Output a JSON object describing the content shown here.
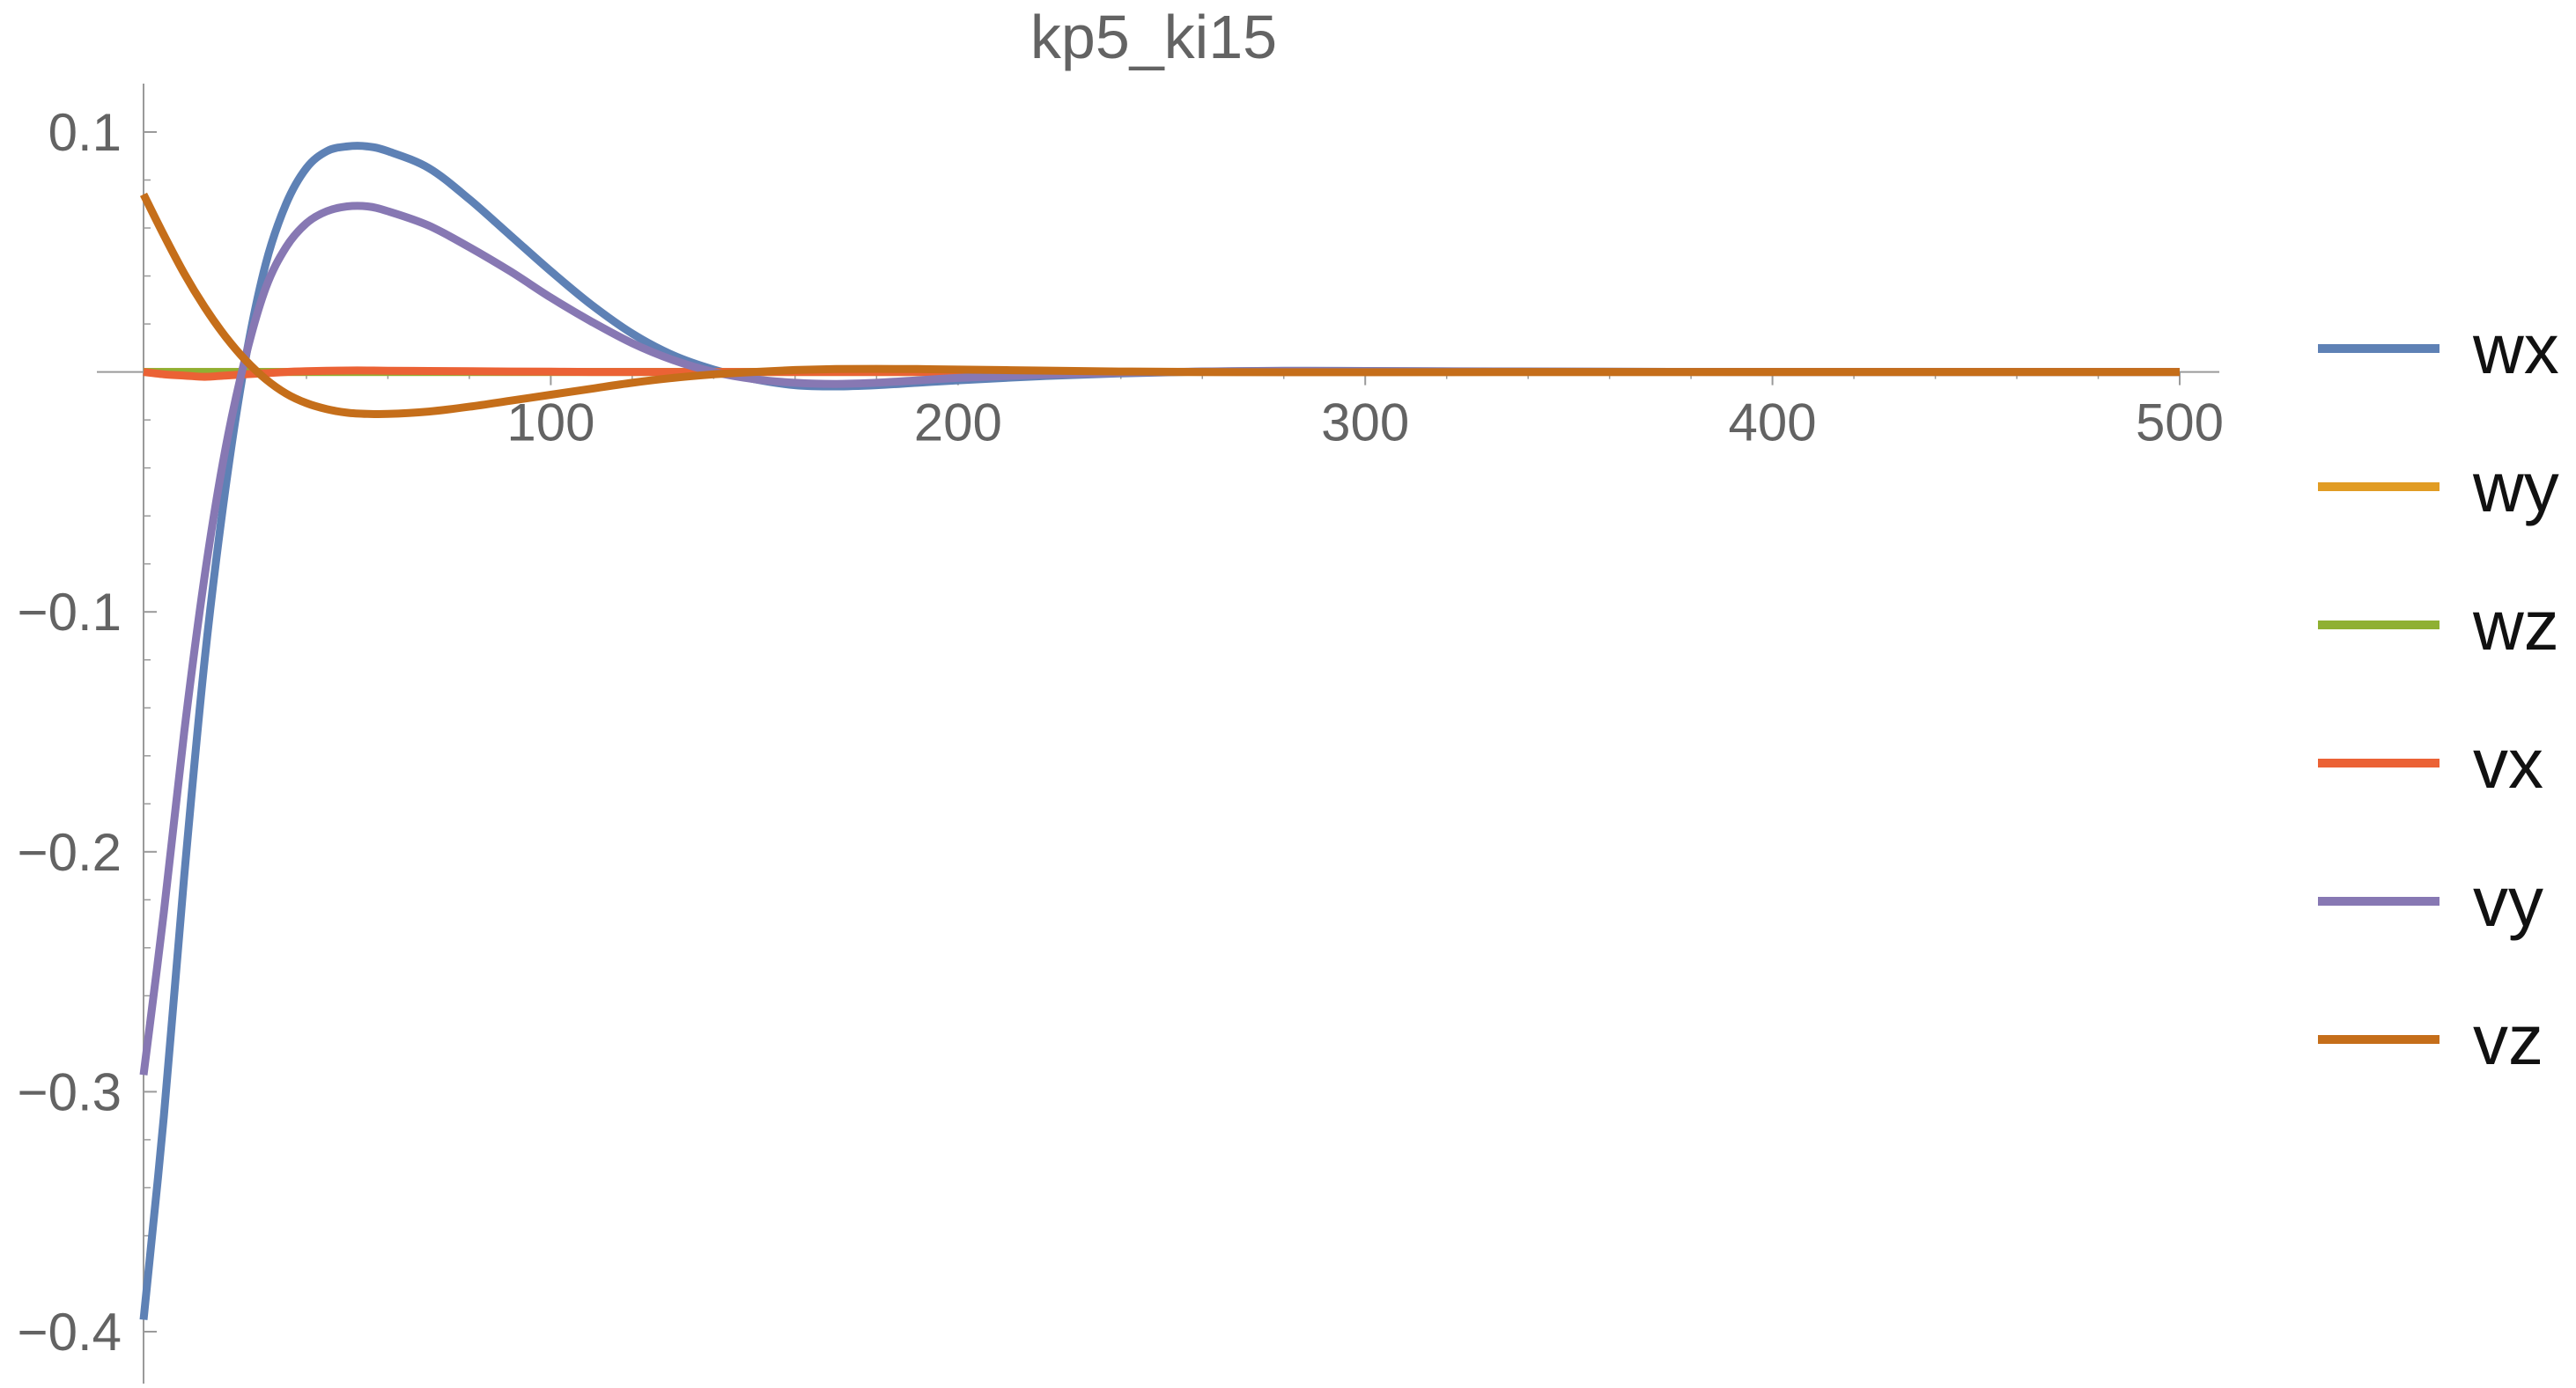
{
  "chart_data": {
    "type": "line",
    "title": "kp5_ki15",
    "xlabel": "",
    "ylabel": "",
    "xlim": [
      0,
      500
    ],
    "ylim": [
      -0.4,
      0.1
    ],
    "x_ticks": [
      100,
      200,
      300,
      400,
      500
    ],
    "y_ticks": [
      0.1,
      -0.1,
      -0.2,
      -0.3,
      -0.4
    ],
    "x_tick_labels": [
      "100",
      "200",
      "300",
      "400",
      "500"
    ],
    "y_tick_labels": [
      "0.1",
      "−0.1",
      "−0.2",
      "−0.3",
      "−0.4"
    ],
    "grid": false,
    "legend_position": "right",
    "x": [
      0,
      5,
      10,
      15,
      20,
      25,
      30,
      35,
      40,
      45,
      50,
      55,
      60,
      70,
      80,
      90,
      100,
      110,
      120,
      130,
      140,
      150,
      160,
      170,
      180,
      190,
      200,
      220,
      240,
      260,
      280,
      300,
      350,
      400,
      450,
      500
    ],
    "series": [
      {
        "name": "wx",
        "color": "#5E81B5",
        "values": [
          -0.395,
          -0.31,
          -0.21,
          -0.12,
          -0.05,
          0.005,
          0.045,
          0.07,
          0.085,
          0.092,
          0.094,
          0.094,
          0.092,
          0.085,
          0.072,
          0.057,
          0.042,
          0.028,
          0.016,
          0.007,
          0.001,
          -0.003,
          -0.0055,
          -0.006,
          -0.0055,
          -0.0045,
          -0.0035,
          -0.0018,
          -0.0006,
          0.0002,
          0.0005,
          0.0004,
          0.0001,
          0.0,
          0.0,
          0.0
        ]
      },
      {
        "name": "wy",
        "color": "#E19C24",
        "values": [
          0.0,
          0.0,
          0.0,
          0.0,
          0.0,
          0.0,
          0.0,
          0.0,
          0.0,
          0.0,
          0.0,
          0.0,
          0.0,
          0.0,
          0.0,
          0.0,
          0.0,
          0.0,
          0.0,
          0.0,
          0.0,
          0.0,
          0.0,
          0.0,
          0.0,
          0.0,
          0.0,
          0.0,
          0.0,
          0.0,
          0.0,
          0.0,
          0.0,
          0.0,
          0.0,
          0.0
        ]
      },
      {
        "name": "wz",
        "color": "#8FB032",
        "values": [
          0.0,
          0.0,
          0.0,
          0.0,
          0.0,
          0.0,
          0.0,
          0.0,
          0.0,
          0.0,
          0.0,
          0.0,
          0.0,
          0.0,
          0.0,
          0.0,
          0.0,
          0.0,
          0.0,
          0.0,
          0.0,
          0.0,
          0.0,
          0.0,
          0.0,
          0.0,
          0.0,
          0.0,
          0.0,
          0.0,
          0.0,
          0.0,
          0.0,
          0.0,
          0.0,
          0.0
        ]
      },
      {
        "name": "vx",
        "color": "#EB6235",
        "values": [
          0.0,
          -0.001,
          -0.0015,
          -0.002,
          -0.0015,
          -0.001,
          -0.0005,
          0.0,
          0.0003,
          0.0005,
          0.0006,
          0.0006,
          0.0005,
          0.0004,
          0.0003,
          0.0002,
          0.0001,
          0.0,
          0.0,
          0.0,
          0.0,
          0.0,
          0.0,
          0.0,
          0.0,
          0.0,
          0.0,
          0.0,
          0.0,
          0.0,
          0.0,
          0.0,
          0.0,
          0.0,
          0.0,
          0.0
        ]
      },
      {
        "name": "vy",
        "color": "#8778B3",
        "values": [
          -0.293,
          -0.225,
          -0.15,
          -0.085,
          -0.033,
          0.006,
          0.035,
          0.052,
          0.062,
          0.067,
          0.069,
          0.069,
          0.067,
          0.061,
          0.052,
          0.042,
          0.031,
          0.021,
          0.012,
          0.005,
          0.0,
          -0.003,
          -0.0045,
          -0.005,
          -0.0045,
          -0.0035,
          -0.0025,
          -0.0012,
          -0.0003,
          0.0002,
          0.0004,
          0.0003,
          0.0001,
          0.0,
          0.0,
          0.0
        ]
      },
      {
        "name": "vz",
        "color": "#C56E1A",
        "values": [
          0.074,
          0.057,
          0.041,
          0.027,
          0.015,
          0.005,
          -0.003,
          -0.009,
          -0.013,
          -0.0155,
          -0.017,
          -0.0175,
          -0.0175,
          -0.0165,
          -0.0145,
          -0.012,
          -0.0095,
          -0.007,
          -0.0045,
          -0.0025,
          -0.001,
          0.0,
          0.0008,
          0.0012,
          0.0013,
          0.0012,
          0.001,
          0.0006,
          0.0002,
          0.0,
          -0.0001,
          -0.0001,
          0.0,
          0.0,
          0.0,
          0.0
        ]
      }
    ]
  }
}
